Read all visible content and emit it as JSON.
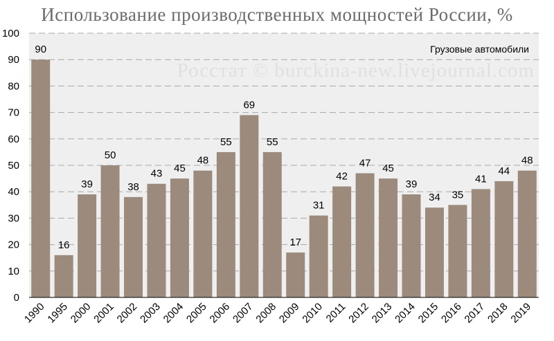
{
  "chart_data": {
    "type": "bar",
    "title": "Использование производственных мощностей России, %",
    "subtitle": "Грузовые автомобили",
    "watermark": "Росстат © burckina-new.livejournal.com",
    "categories": [
      "1990",
      "1995",
      "2000",
      "2001",
      "2002",
      "2003",
      "2004",
      "2005",
      "2006",
      "2007",
      "2008",
      "2009",
      "2010",
      "2011",
      "2012",
      "2013",
      "2014",
      "2015",
      "2016",
      "2017",
      "2018",
      "2019"
    ],
    "series": [
      {
        "values": [
          90,
          16,
          39,
          50,
          38,
          43,
          45,
          48,
          55,
          69,
          55,
          17,
          31,
          42,
          47,
          45,
          39,
          34,
          35,
          41,
          44,
          48
        ]
      }
    ],
    "data_labels": [
      "90",
      "16",
      "39",
      "50",
      "38",
      "43",
      "45",
      "48",
      "55",
      "69",
      "55",
      "17",
      "31",
      "42",
      "47",
      "45",
      "39",
      "34",
      "35",
      "41",
      "44",
      "48"
    ],
    "yticks": [
      "0",
      "10",
      "20",
      "30",
      "40",
      "50",
      "60",
      "70",
      "80",
      "90",
      "100"
    ],
    "ylim": [
      0,
      100
    ],
    "xlabel": "",
    "ylabel": "",
    "grid": true,
    "legend_position": "top-right",
    "colors": {
      "bar": "#9c8b7c",
      "plot_background": "#efefef",
      "gridline": "#a8a8a8",
      "title": "#6b6b6b",
      "watermark": "#e0e0e0"
    }
  }
}
